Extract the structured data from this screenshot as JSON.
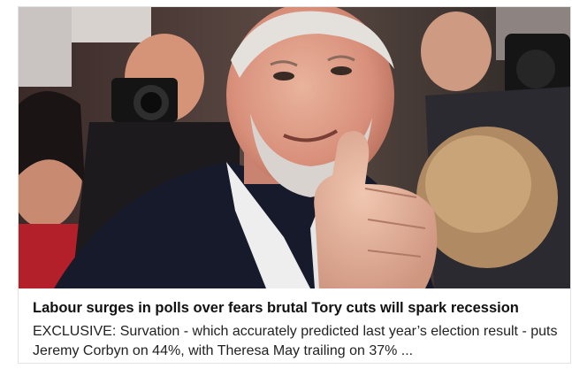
{
  "article": {
    "headline": "Labour surges in polls over fears brutal Tory cuts will spark recession",
    "summary": "EXCLUSIVE: Survation - which accurately predicted last year’s election result - puts Jeremy Corbyn on 44%, with Theresa May trailing on 37% ...",
    "image_subject": "man-giving-thumbs-up-photo"
  },
  "colors": {
    "background": "#ffffff",
    "card_border": "#e3e3e3",
    "headline_text": "#111111",
    "summary_text": "#222222"
  }
}
